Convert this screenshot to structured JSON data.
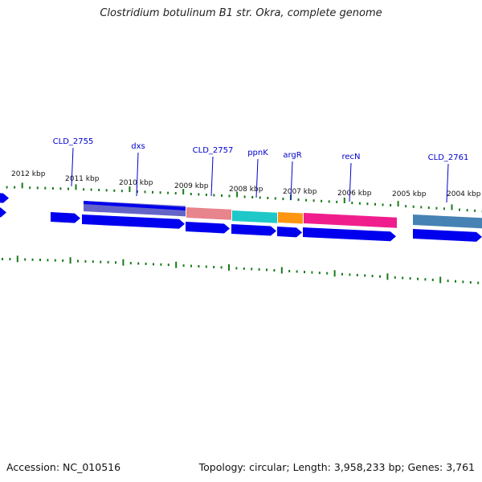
{
  "title": "Clostridium botulinum B1 str. Okra, complete genome",
  "footer": {
    "accession": "Accession: NC_010516",
    "summary": "Topology: circular; Length: 3,958,233 bp; Genes: 3,761"
  },
  "colors": {
    "gene_blue": "#0000ee",
    "label_blue": "#0000cc",
    "tick_green": "#1a7a1a",
    "backbone_gray": "#8c8c8c",
    "dxs_feature": "#6464c8",
    "cld2757_feature": "#e8848c",
    "ppnk_feature": "#1ec8c8",
    "argr_feature": "#ff9612",
    "recn_feature": "#f01e8c",
    "cld2761_feature": "#4682b4"
  },
  "kbp_ticks": [
    {
      "label": "2012 kbp"
    },
    {
      "label": "2011 kbp"
    },
    {
      "label": "2010 kbp"
    },
    {
      "label": "2009 kbp"
    },
    {
      "label": "2008 kbp"
    },
    {
      "label": "2007 kbp"
    },
    {
      "label": "2006 kbp"
    },
    {
      "label": "2005 kbp"
    },
    {
      "label": "2004 kbp"
    }
  ],
  "gene_labels": [
    {
      "label": "CLD_2755"
    },
    {
      "label": "dxs"
    },
    {
      "label": "CLD_2757"
    },
    {
      "label": "ppnK"
    },
    {
      "label": "argR"
    },
    {
      "label": "recN"
    },
    {
      "label": "CLD_2761"
    }
  ]
}
